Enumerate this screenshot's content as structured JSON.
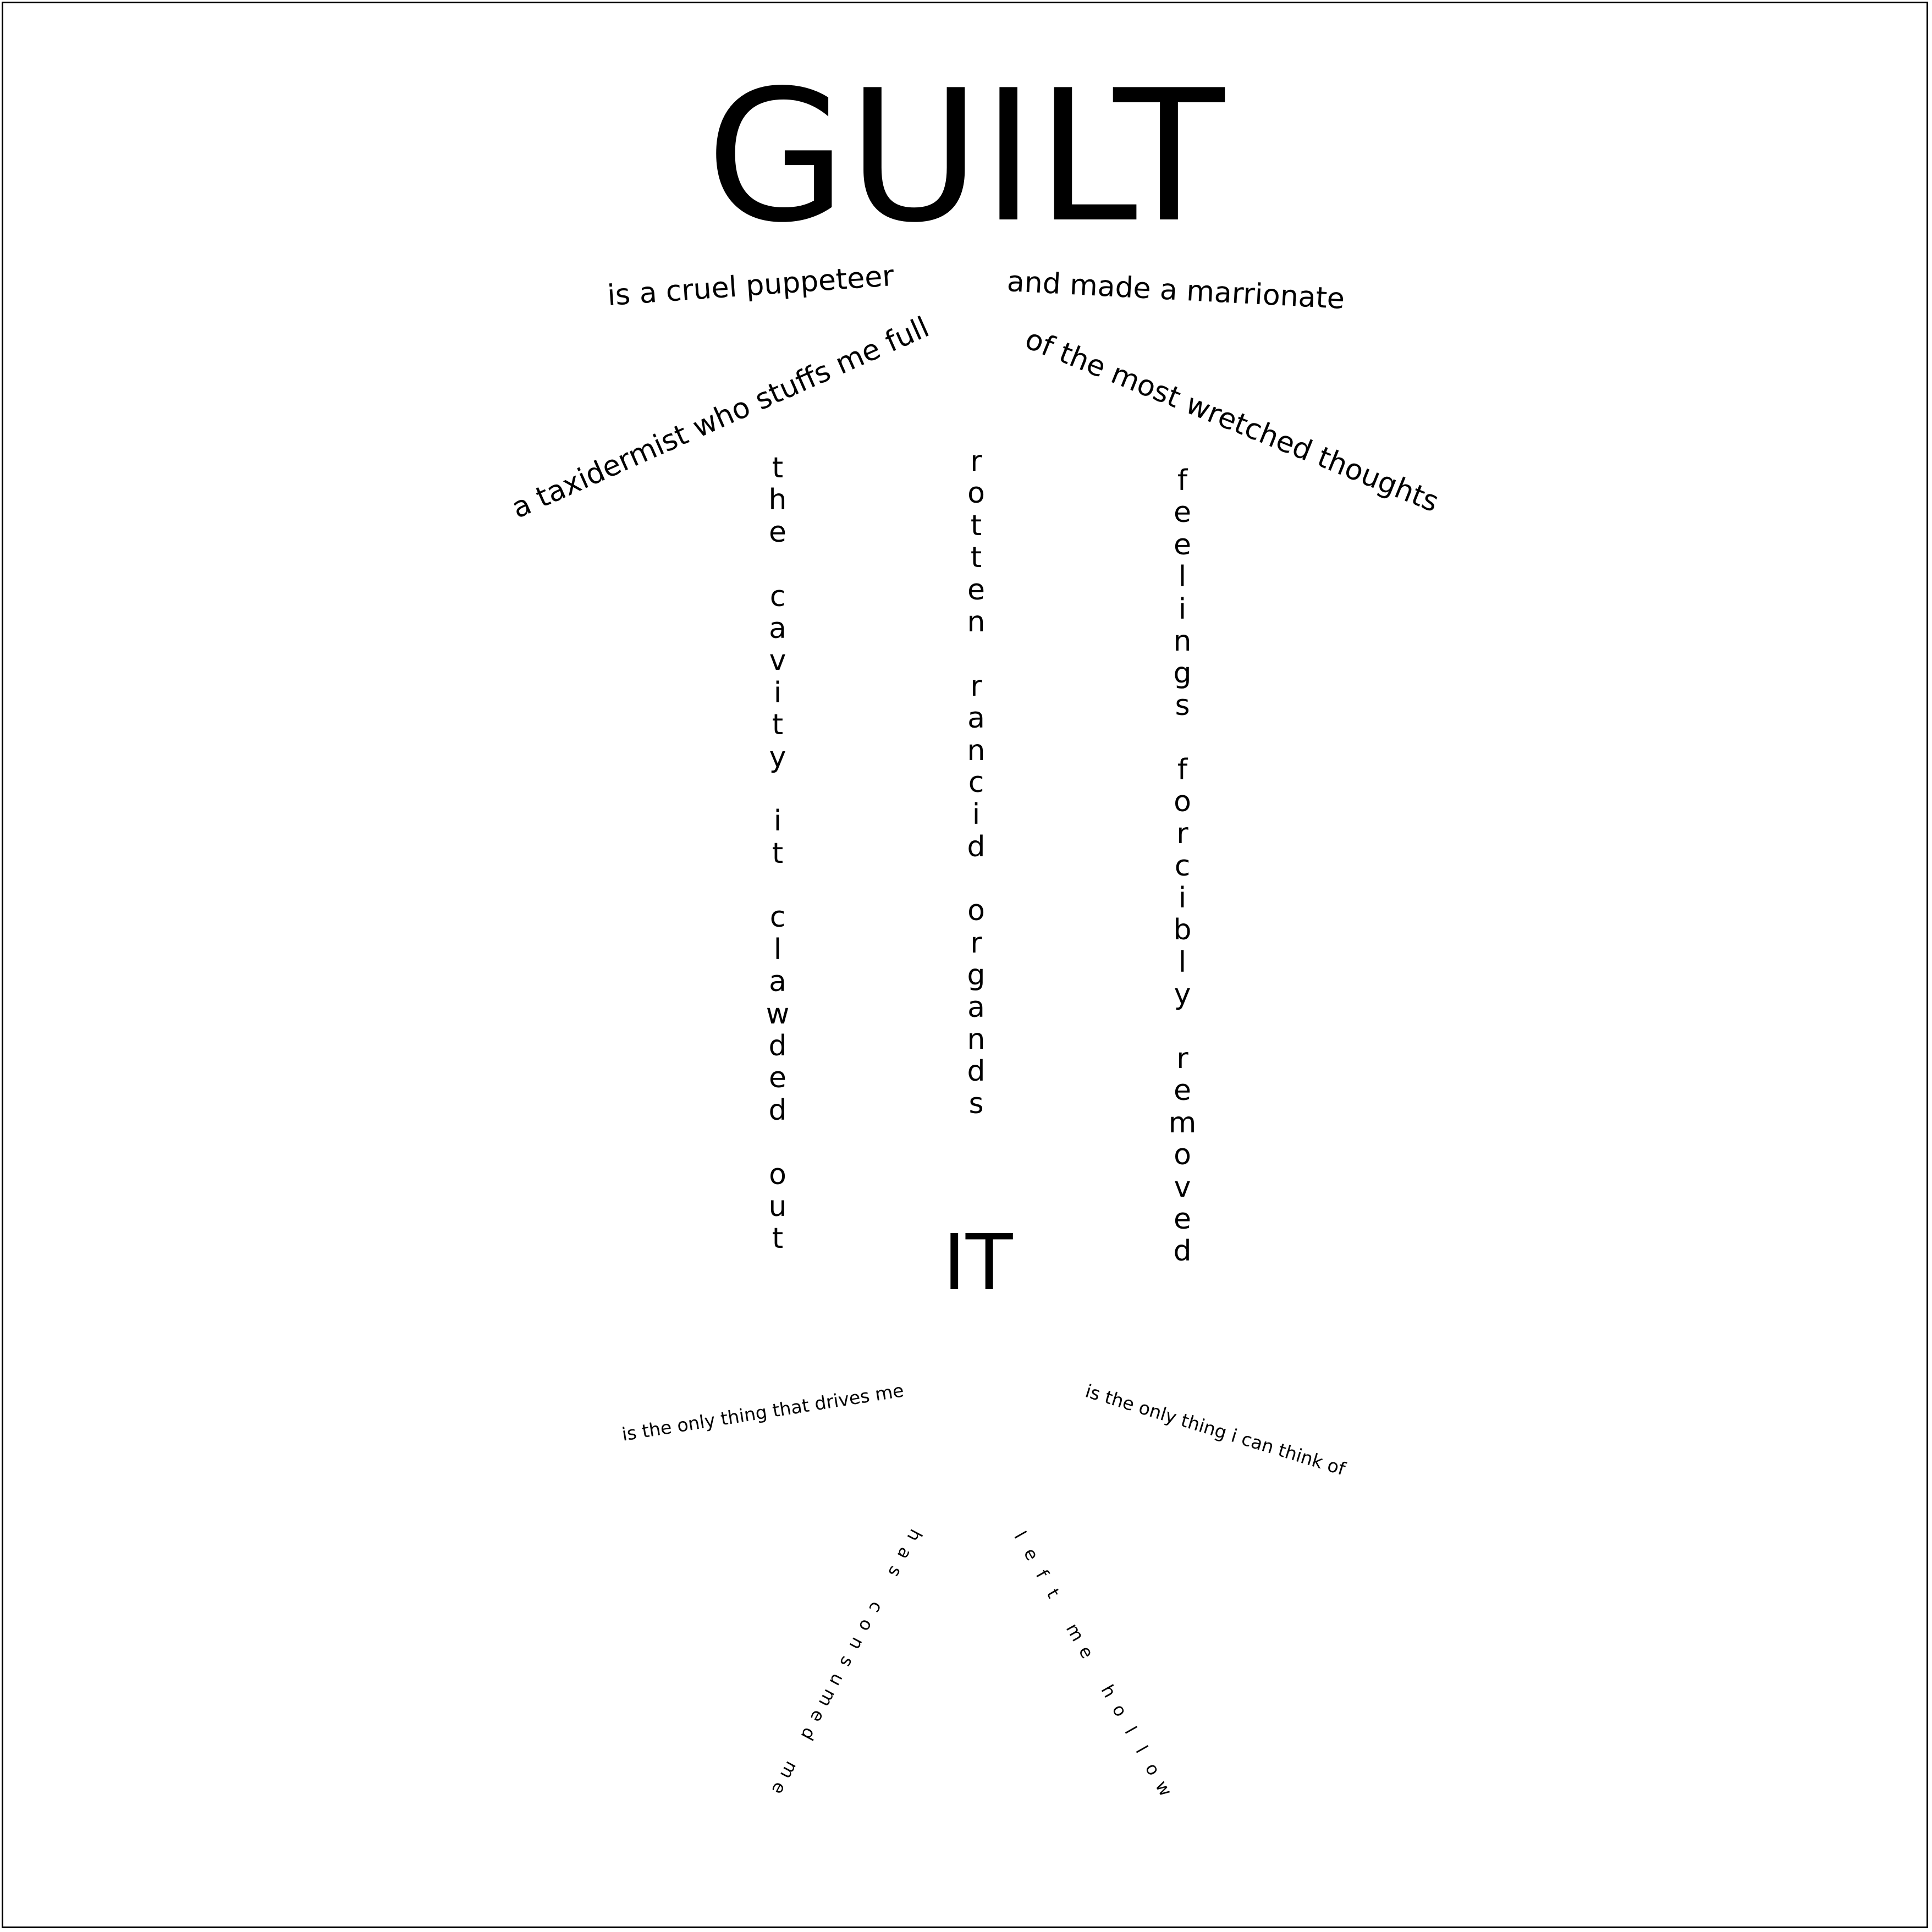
{
  "poem": {
    "title": "GUILT",
    "line_puppeteer": "is a cruel puppeteer",
    "line_marrionate": "and made a marrionate",
    "line_taxidermist": "a taxidermist who stuffs me  full",
    "line_thoughts": "of the most wretched thoughts",
    "column_left": "the cavity it clawded out",
    "column_center": "rotten rancid organds",
    "column_right": "feelings forcibly removed",
    "it": "IT",
    "line_drives": "is the only thing that drives me",
    "line_think": "is the only thing i can think of",
    "tail_left": "has consumed me",
    "tail_right": "left me hollow"
  }
}
